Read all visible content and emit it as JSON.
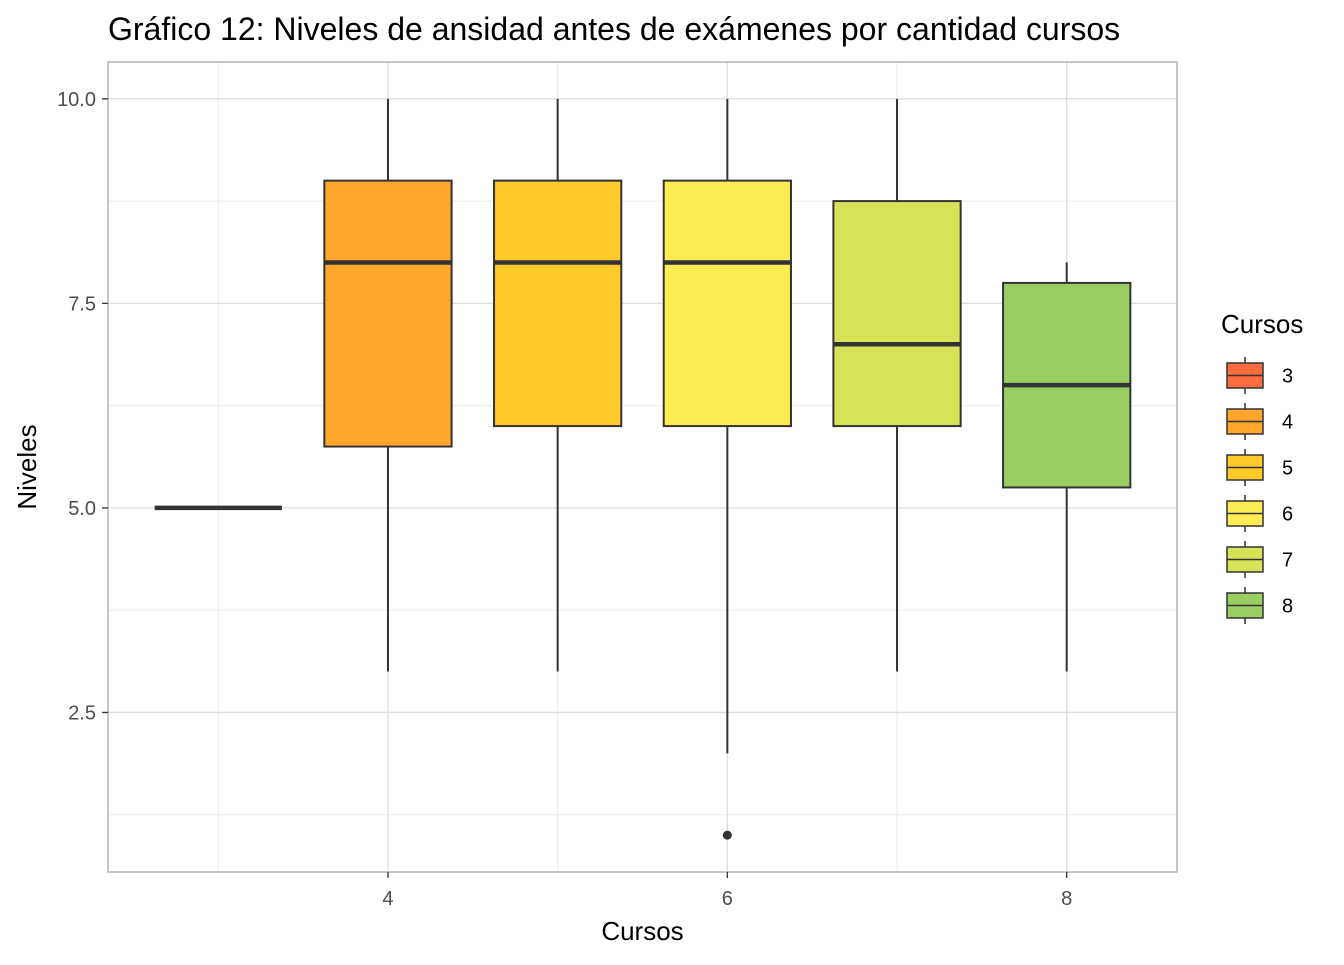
{
  "chart_data": {
    "type": "boxplot",
    "title": "Gráfico 12: Niveles de ansidad antes de exámenes por cantidad cursos",
    "xlabel": "Cursos",
    "ylabel": "Niveles",
    "xlim": [
      2.35,
      8.65
    ],
    "ylim": [
      0.55,
      10.45
    ],
    "x_ticks": [
      4,
      6,
      8
    ],
    "x_tick_labels": [
      "4",
      "6",
      "8"
    ],
    "y_ticks": [
      2.5,
      5.0,
      7.5,
      10.0
    ],
    "y_tick_labels": [
      "2.5",
      "5.0",
      "7.5",
      "10.0"
    ],
    "y_minor_ticks": [
      1.25,
      3.75,
      6.25,
      8.75
    ],
    "x_minor_ticks": [
      3,
      5,
      7
    ],
    "grid": true,
    "legend": {
      "title": "Cursos",
      "position": "right",
      "entries": [
        "3",
        "4",
        "5",
        "6",
        "7",
        "8"
      ]
    },
    "boxes": [
      {
        "category": "3",
        "x": 3,
        "min": 5.0,
        "q1": 5.0,
        "median": 5.0,
        "q3": 5.0,
        "max": 5.0,
        "outliers": [],
        "color": "#FF6C40"
      },
      {
        "category": "4",
        "x": 4,
        "min": 3.0,
        "q1": 5.75,
        "median": 8.0,
        "q3": 9.0,
        "max": 10.0,
        "outliers": [],
        "color": "#FFA62B"
      },
      {
        "category": "5",
        "x": 5,
        "min": 3.0,
        "q1": 6.0,
        "median": 8.0,
        "q3": 9.0,
        "max": 10.0,
        "outliers": [],
        "color": "#FFC929"
      },
      {
        "category": "6",
        "x": 6,
        "min": 2.0,
        "q1": 6.0,
        "median": 8.0,
        "q3": 9.0,
        "max": 10.0,
        "outliers": [
          1.0
        ],
        "color": "#FFEC55"
      },
      {
        "category": "7",
        "x": 7,
        "min": 3.0,
        "q1": 6.0,
        "median": 7.0,
        "q3": 8.75,
        "max": 10.0,
        "outliers": [],
        "color": "#D6E257"
      },
      {
        "category": "8",
        "x": 8,
        "min": 3.0,
        "q1": 5.25,
        "median": 6.5,
        "q3": 7.75,
        "max": 8.0,
        "outliers": [],
        "color": "#9ACD62"
      }
    ]
  }
}
